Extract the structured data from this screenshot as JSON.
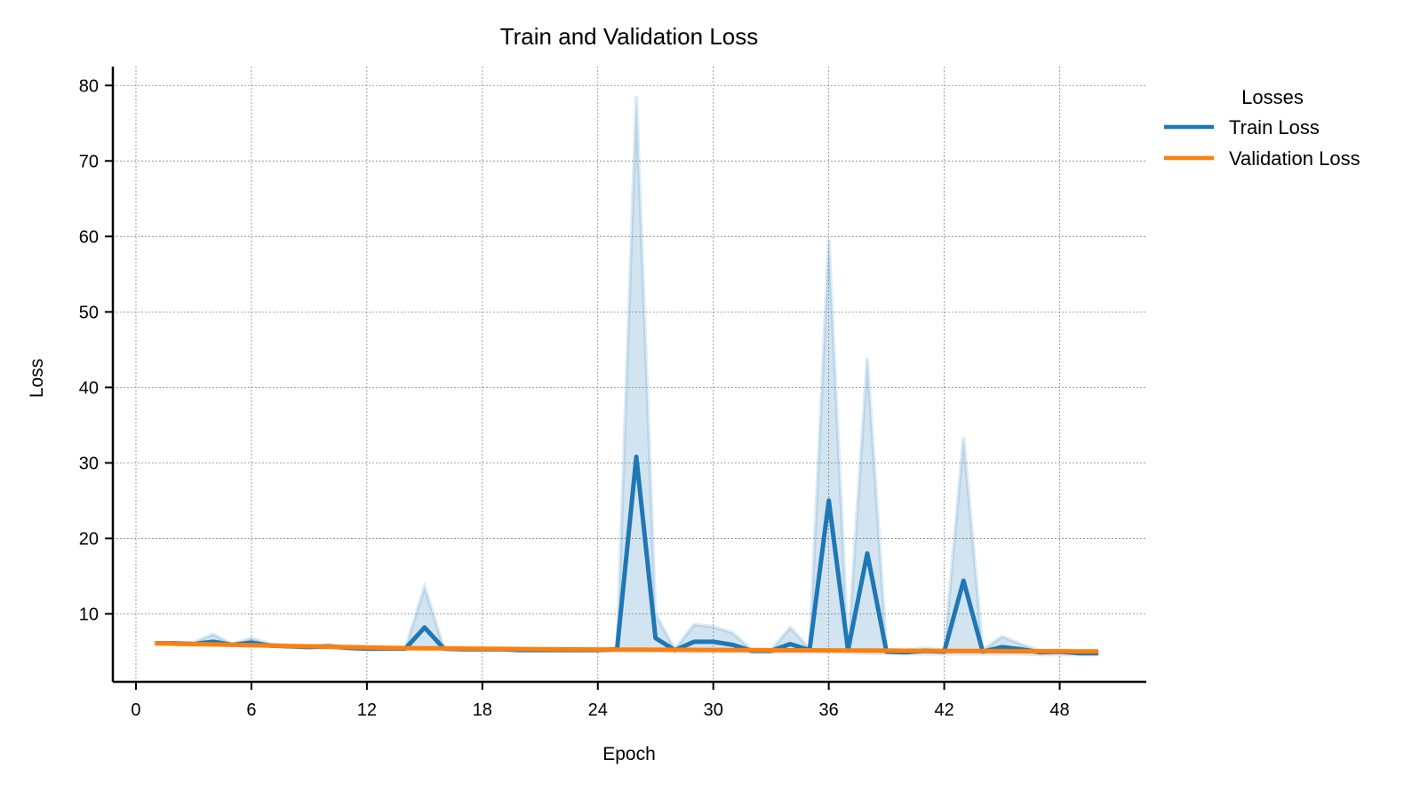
{
  "chart_data": {
    "type": "line",
    "title": "Train and Validation Loss",
    "xlabel": "Epoch",
    "ylabel": "Loss",
    "xlim": [
      -1.2,
      52.5
    ],
    "ylim": [
      1,
      82.5
    ],
    "xticks": [
      0,
      6,
      12,
      18,
      24,
      30,
      36,
      42,
      48
    ],
    "yticks": [
      10,
      20,
      30,
      40,
      50,
      60,
      70,
      80
    ],
    "grid": true,
    "legend": {
      "title": "Losses",
      "placement": "right-outside-top"
    },
    "x": [
      1,
      2,
      3,
      4,
      5,
      6,
      7,
      8,
      9,
      10,
      11,
      12,
      13,
      14,
      15,
      16,
      17,
      18,
      19,
      20,
      21,
      22,
      23,
      24,
      25,
      26,
      27,
      28,
      29,
      30,
      31,
      32,
      33,
      34,
      35,
      36,
      37,
      38,
      39,
      40,
      41,
      42,
      43,
      44,
      45,
      46,
      47,
      48,
      49,
      50
    ],
    "series": [
      {
        "name": "Train Loss",
        "color": "#1f77b4",
        "values": [
          6.1,
          6.1,
          6.0,
          6.3,
          5.9,
          6.2,
          5.8,
          5.7,
          5.6,
          5.7,
          5.5,
          5.4,
          5.4,
          5.4,
          8.2,
          5.4,
          5.3,
          5.3,
          5.3,
          5.2,
          5.2,
          5.2,
          5.2,
          5.2,
          5.3,
          30.8,
          6.8,
          5.2,
          6.3,
          6.3,
          5.9,
          5.1,
          5.1,
          6.0,
          5.2,
          25.0,
          5.2,
          18.0,
          5.0,
          4.9,
          5.1,
          5.0,
          14.4,
          5.0,
          5.6,
          5.3,
          4.9,
          5.0,
          4.8,
          4.8
        ],
        "band_upper": [
          6.2,
          6.2,
          6.2,
          7.3,
          6.0,
          6.8,
          6.0,
          5.8,
          5.7,
          5.9,
          5.6,
          5.5,
          5.5,
          5.5,
          13.6,
          5.5,
          5.4,
          5.4,
          5.4,
          5.3,
          5.3,
          5.3,
          5.3,
          5.3,
          5.5,
          78.6,
          10.0,
          5.3,
          8.6,
          8.3,
          7.5,
          5.2,
          5.2,
          8.2,
          5.4,
          59.6,
          5.4,
          43.9,
          5.3,
          5.1,
          5.5,
          5.2,
          33.4,
          5.2,
          7.0,
          6.0,
          5.1,
          5.2,
          5.0,
          5.0
        ],
        "band_lower": [
          6.0,
          6.0,
          5.9,
          5.9,
          5.8,
          5.8,
          5.7,
          5.6,
          5.5,
          5.5,
          5.4,
          5.3,
          5.3,
          5.3,
          5.3,
          5.3,
          5.2,
          5.2,
          5.2,
          5.1,
          5.1,
          5.1,
          5.1,
          5.1,
          5.1,
          5.1,
          5.1,
          5.0,
          5.0,
          5.0,
          5.0,
          4.9,
          4.9,
          4.9,
          4.9,
          4.9,
          4.9,
          4.8,
          4.8,
          4.7,
          4.7,
          4.7,
          4.7,
          4.7,
          4.7,
          4.7,
          4.6,
          4.6,
          4.6,
          4.6
        ]
      },
      {
        "name": "Validation Loss",
        "color": "#ff7f0e",
        "values": [
          6.1,
          6.05,
          6.0,
          5.95,
          5.9,
          5.85,
          5.8,
          5.75,
          5.7,
          5.65,
          5.6,
          5.55,
          5.5,
          5.47,
          5.45,
          5.43,
          5.4,
          5.38,
          5.36,
          5.34,
          5.32,
          5.3,
          5.29,
          5.28,
          5.27,
          5.26,
          5.25,
          5.24,
          5.23,
          5.22,
          5.21,
          5.2,
          5.19,
          5.18,
          5.17,
          5.16,
          5.15,
          5.14,
          5.13,
          5.12,
          5.11,
          5.1,
          5.09,
          5.08,
          5.07,
          5.06,
          5.05,
          5.04,
          5.03,
          5.02
        ]
      }
    ]
  }
}
